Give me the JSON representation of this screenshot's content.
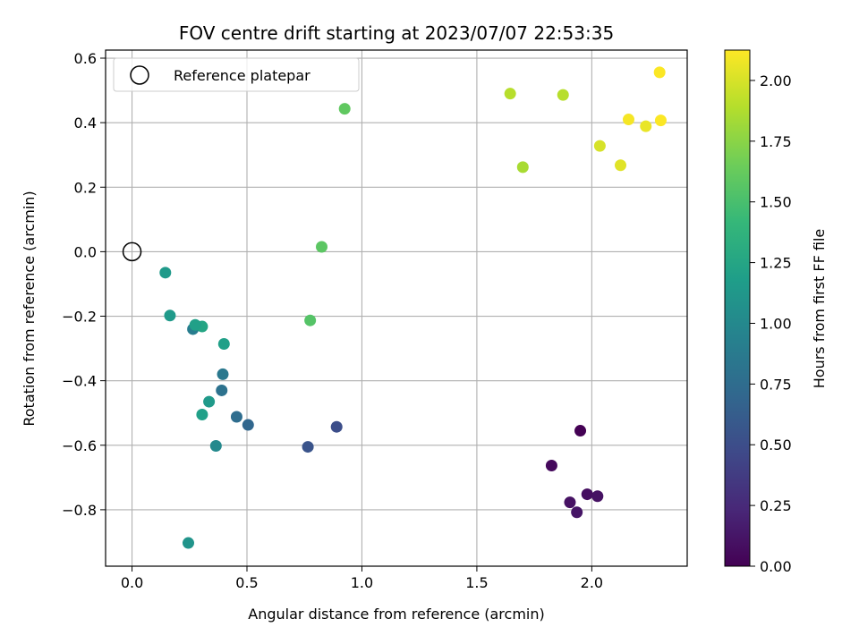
{
  "chart_data": {
    "type": "scatter",
    "title": "FOV centre drift starting at 2023/07/07 22:53:35",
    "xlabel": "Angular distance from reference (arcmin)",
    "ylabel": "Rotation from reference (arcmin)",
    "xlim": [
      -0.115,
      2.415
    ],
    "ylim": [
      -0.975,
      0.625
    ],
    "xticks": [
      0.0,
      0.5,
      1.0,
      1.5,
      2.0
    ],
    "xtick_labels": [
      "0.0",
      "0.5",
      "1.0",
      "1.5",
      "2.0"
    ],
    "yticks": [
      -0.8,
      -0.6,
      -0.4,
      -0.2,
      0.0,
      0.2,
      0.4,
      0.6
    ],
    "ytick_labels": [
      "−0.8",
      "−0.6",
      "−0.4",
      "−0.2",
      "0.0",
      "0.2",
      "0.4",
      "0.6"
    ],
    "grid": true,
    "legend": {
      "position": "top-left",
      "entries": [
        "Reference platepar"
      ]
    },
    "reference_point": {
      "x": 0.0,
      "y": 0.0
    },
    "colorbar": {
      "label": "Hours from first FF file",
      "range": [
        0.0,
        2.125
      ],
      "ticks": [
        0.0,
        0.25,
        0.5,
        0.75,
        1.0,
        1.25,
        1.5,
        1.75,
        2.0
      ],
      "tick_labels": [
        "0.00",
        "0.25",
        "0.50",
        "0.75",
        "1.00",
        "1.25",
        "1.50",
        "1.75",
        "2.00"
      ],
      "colormap": "viridis"
    },
    "points": [
      {
        "x": 1.95,
        "y": -0.555,
        "c": 0.0
      },
      {
        "x": 1.825,
        "y": -0.663,
        "c": 0.05
      },
      {
        "x": 1.905,
        "y": -0.777,
        "c": 0.1
      },
      {
        "x": 1.935,
        "y": -0.808,
        "c": 0.12
      },
      {
        "x": 1.98,
        "y": -0.752,
        "c": 0.08
      },
      {
        "x": 2.025,
        "y": -0.758,
        "c": 0.1
      },
      {
        "x": 0.89,
        "y": -0.543,
        "c": 0.5
      },
      {
        "x": 0.765,
        "y": -0.605,
        "c": 0.55
      },
      {
        "x": 0.505,
        "y": -0.537,
        "c": 0.7
      },
      {
        "x": 0.455,
        "y": -0.512,
        "c": 0.75
      },
      {
        "x": 0.39,
        "y": -0.43,
        "c": 0.8
      },
      {
        "x": 0.395,
        "y": -0.38,
        "c": 0.85
      },
      {
        "x": 0.265,
        "y": -0.24,
        "c": 0.9
      },
      {
        "x": 0.365,
        "y": -0.602,
        "c": 1.0
      },
      {
        "x": 0.245,
        "y": -0.903,
        "c": 1.1
      },
      {
        "x": 0.305,
        "y": -0.505,
        "c": 1.2
      },
      {
        "x": 0.335,
        "y": -0.465,
        "c": 1.15
      },
      {
        "x": 0.4,
        "y": -0.286,
        "c": 1.2
      },
      {
        "x": 0.305,
        "y": -0.232,
        "c": 1.25
      },
      {
        "x": 0.275,
        "y": -0.227,
        "c": 1.2
      },
      {
        "x": 0.165,
        "y": -0.198,
        "c": 1.15
      },
      {
        "x": 0.145,
        "y": -0.065,
        "c": 1.15
      },
      {
        "x": 0.775,
        "y": -0.213,
        "c": 1.55
      },
      {
        "x": 0.825,
        "y": 0.015,
        "c": 1.58
      },
      {
        "x": 0.925,
        "y": 0.443,
        "c": 1.6
      },
      {
        "x": 1.645,
        "y": 0.49,
        "c": 1.9
      },
      {
        "x": 1.7,
        "y": 0.262,
        "c": 1.85
      },
      {
        "x": 1.875,
        "y": 0.486,
        "c": 1.9
      },
      {
        "x": 2.035,
        "y": 0.328,
        "c": 2.0
      },
      {
        "x": 2.125,
        "y": 0.268,
        "c": 2.03
      },
      {
        "x": 2.16,
        "y": 0.41,
        "c": 2.1
      },
      {
        "x": 2.235,
        "y": 0.389,
        "c": 2.06
      },
      {
        "x": 2.3,
        "y": 0.407,
        "c": 2.12
      },
      {
        "x": 2.295,
        "y": 0.556,
        "c": 2.12
      }
    ]
  },
  "colors": {
    "grid": "#b0b0b0",
    "axes": "#000000",
    "reference_marker": "#000000"
  }
}
